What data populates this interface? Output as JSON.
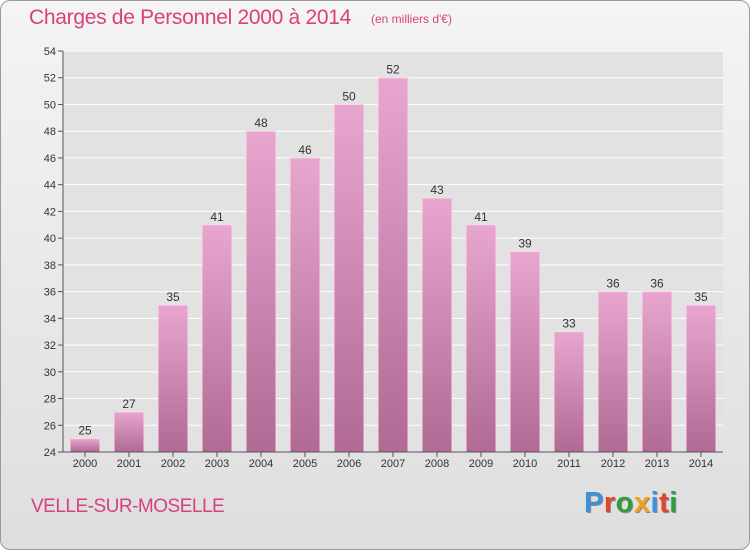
{
  "header": {
    "title": "Charges de Personnel 2000 à 2014",
    "subtitle": "(en milliers d'€)"
  },
  "footer": {
    "commune": "VELLE-SUR-MOSELLE",
    "logo": "Proxiti"
  },
  "colors": {
    "title": "#d9407e",
    "bar_top": "#e8a6cf",
    "bar_bottom": "#b06a94",
    "logo_letters": [
      "#3f8fd9",
      "#e3452c",
      "#2f9d3c",
      "#f0a21f",
      "#3f8fd9",
      "#e3452c",
      "#2f9d3c"
    ]
  },
  "chart_data": {
    "type": "bar",
    "categories": [
      "2000",
      "2001",
      "2002",
      "2003",
      "2004",
      "2005",
      "2006",
      "2007",
      "2008",
      "2009",
      "2010",
      "2011",
      "2012",
      "2013",
      "2014"
    ],
    "values": [
      25,
      27,
      35,
      41,
      48,
      46,
      50,
      52,
      43,
      41,
      39,
      33,
      36,
      36,
      35
    ],
    "ylim": [
      24,
      54
    ],
    "yticks": [
      24,
      26,
      28,
      30,
      32,
      34,
      36,
      38,
      40,
      42,
      44,
      46,
      48,
      50,
      52,
      54
    ],
    "grid": true
  }
}
